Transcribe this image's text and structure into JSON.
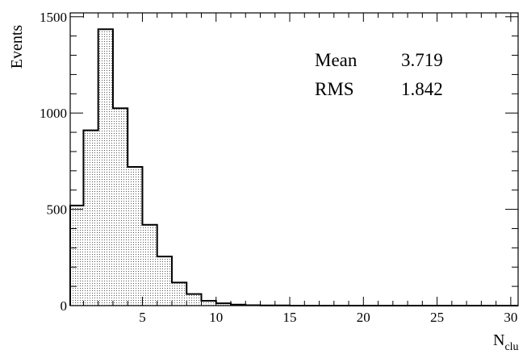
{
  "chart_data": {
    "type": "bar",
    "bins": [
      {
        "x_low": 0,
        "x_high": 1,
        "value": 520
      },
      {
        "x_low": 1,
        "x_high": 2,
        "value": 910
      },
      {
        "x_low": 2,
        "x_high": 3,
        "value": 1435
      },
      {
        "x_low": 3,
        "x_high": 4,
        "value": 1025
      },
      {
        "x_low": 4,
        "x_high": 5,
        "value": 720
      },
      {
        "x_low": 5,
        "x_high": 6,
        "value": 420
      },
      {
        "x_low": 6,
        "x_high": 7,
        "value": 255
      },
      {
        "x_low": 7,
        "x_high": 8,
        "value": 120
      },
      {
        "x_low": 8,
        "x_high": 9,
        "value": 60
      },
      {
        "x_low": 9,
        "x_high": 10,
        "value": 25
      },
      {
        "x_low": 10,
        "x_high": 11,
        "value": 12
      },
      {
        "x_low": 11,
        "x_high": 12,
        "value": 5
      },
      {
        "x_low": 12,
        "x_high": 13,
        "value": 2
      },
      {
        "x_low": 13,
        "x_high": 14,
        "value": 1
      },
      {
        "x_low": 14,
        "x_high": 15,
        "value": 1
      }
    ],
    "xlim": [
      0.1,
      30.5
    ],
    "ylim": [
      0,
      1520
    ],
    "x_ticks": [
      5,
      10,
      15,
      20,
      25,
      30
    ],
    "x_tick_labels": [
      "5",
      "10",
      "15",
      "20",
      "25",
      "30"
    ],
    "y_ticks": [
      0,
      500,
      1000,
      1500
    ],
    "y_tick_labels": [
      "0",
      "500",
      "1000",
      "1500"
    ],
    "ylabel": "Events",
    "xlabel_main": "N",
    "xlabel_sub": "clu",
    "stats": {
      "mean_label": "Mean",
      "mean_value": "3.719",
      "rms_label": "RMS",
      "rms_value": "1.842"
    },
    "fill_color": "#d8d8d8",
    "line_color": "#000000",
    "grid": false
  }
}
